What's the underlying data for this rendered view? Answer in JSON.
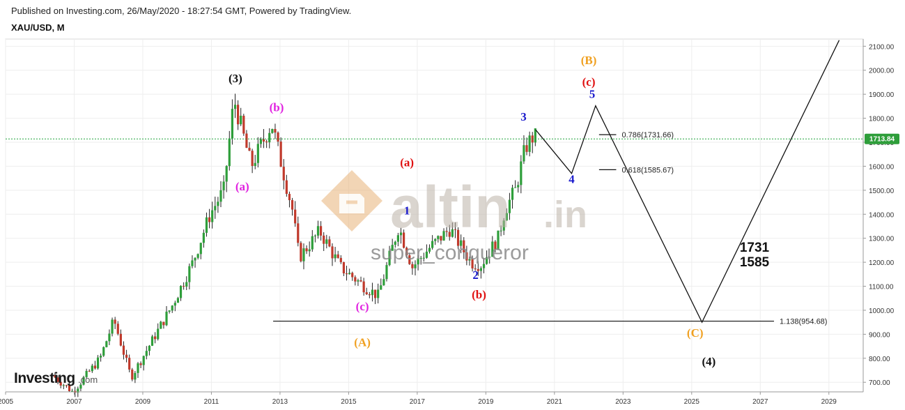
{
  "header": {
    "published": "Published on Investing.com, 26/May/2020 - 18:27:54 GMT, Powered by TradingView.",
    "symbol": "XAU/USD, M"
  },
  "branding": {
    "logo_text": "Investing",
    "logo_suffix": ".com",
    "watermark_main": "altin",
    "watermark_suffix": ".in",
    "author": "super_conqueror"
  },
  "colors": {
    "up": "#2e9e3a",
    "down": "#c0392b",
    "price_line": "#1ea33a",
    "price_badge": "#2e9e3a",
    "black_label": "#111111",
    "magenta_label": "#e020e0",
    "red_label": "#e01010",
    "blue_label": "#1a1acc",
    "orange_label": "#f0a020"
  },
  "chart_data": {
    "type": "candlestick",
    "x_axis": {
      "ticks": [
        "2005",
        "2007",
        "2009",
        "2011",
        "2013",
        "2015",
        "2017",
        "2019",
        "2021",
        "2023",
        "2025",
        "2027",
        "2029"
      ],
      "range": [
        2005.0,
        2030.0
      ]
    },
    "y_axis": {
      "ticks": [
        "2100.00",
        "2000.00",
        "1900.00",
        "1800.00",
        "1700.00",
        "1600.00",
        "1500.00",
        "1400.00",
        "1300.00",
        "1200.00",
        "1100.00",
        "1000.00",
        "900.00",
        "800.00",
        "700.00"
      ],
      "range": [
        660,
        2130
      ]
    },
    "current_price": {
      "value": 1713.84,
      "label": "1713.84"
    },
    "price_series": [
      [
        2006.4,
        730
      ],
      [
        2007.0,
        660
      ],
      [
        2007.8,
        800
      ],
      [
        2008.2,
        960
      ],
      [
        2008.7,
        720
      ],
      [
        2009.5,
        920
      ],
      [
        2009.9,
        1020
      ],
      [
        2010.5,
        1200
      ],
      [
        2011.0,
        1400
      ],
      [
        2011.4,
        1500
      ],
      [
        2011.7,
        1880
      ],
      [
        2012.2,
        1600
      ],
      [
        2012.8,
        1780
      ],
      [
        2013.4,
        1420
      ],
      [
        2013.6,
        1220
      ],
      [
        2014.2,
        1330
      ],
      [
        2014.8,
        1180
      ],
      [
        2015.5,
        1100
      ],
      [
        2015.9,
        1060
      ],
      [
        2016.5,
        1350
      ],
      [
        2016.9,
        1180
      ],
      [
        2017.4,
        1260
      ],
      [
        2018.0,
        1340
      ],
      [
        2018.6,
        1200
      ],
      [
        2018.9,
        1190
      ],
      [
        2019.4,
        1300
      ],
      [
        2019.6,
        1420
      ],
      [
        2019.9,
        1500
      ],
      [
        2020.2,
        1680
      ],
      [
        2020.4,
        1720
      ]
    ],
    "projection": [
      [
        2020.45,
        1752
      ],
      [
        2021.5,
        1570
      ],
      [
        2022.2,
        1852
      ],
      [
        2025.3,
        950
      ],
      [
        2029.3,
        2125
      ]
    ],
    "fib_levels": [
      {
        "label": "0.786(1731.66)",
        "value": 1731.66,
        "x_from": 2022.3,
        "x_to": 2022.8
      },
      {
        "label": "0.618(1585.67)",
        "value": 1585.67,
        "x_from": 2022.3,
        "x_to": 2022.8
      },
      {
        "label": "1.138(954.68)",
        "value": 954.68,
        "x_from": 2012.8,
        "x_to": 2027.4
      }
    ],
    "wave_labels": [
      {
        "text": "(3)",
        "x": 2011.7,
        "y": 1950,
        "color": "black"
      },
      {
        "text": "(b)",
        "x": 2012.9,
        "y": 1830,
        "color": "magenta"
      },
      {
        "text": "(a)",
        "x": 2011.9,
        "y": 1500,
        "color": "magenta"
      },
      {
        "text": "(c)",
        "x": 2015.4,
        "y": 1000,
        "color": "magenta"
      },
      {
        "text": "(a)",
        "x": 2016.7,
        "y": 1600,
        "color": "red"
      },
      {
        "text": "(b)",
        "x": 2018.8,
        "y": 1050,
        "color": "red"
      },
      {
        "text": "(c)",
        "x": 2022.0,
        "y": 1935,
        "color": "red"
      },
      {
        "text": "1",
        "x": 2016.7,
        "y": 1400,
        "color": "blue"
      },
      {
        "text": "2",
        "x": 2018.7,
        "y": 1130,
        "color": "blue"
      },
      {
        "text": "3",
        "x": 2020.1,
        "y": 1790,
        "color": "blue"
      },
      {
        "text": "4",
        "x": 2021.5,
        "y": 1530,
        "color": "blue"
      },
      {
        "text": "5",
        "x": 2022.1,
        "y": 1885,
        "color": "blue"
      },
      {
        "text": "(A)",
        "x": 2015.4,
        "y": 850,
        "color": "orange"
      },
      {
        "text": "(B)",
        "x": 2022.0,
        "y": 2025,
        "color": "orange"
      },
      {
        "text": "(C)",
        "x": 2025.1,
        "y": 890,
        "color": "orange"
      },
      {
        "text": "(4)",
        "x": 2025.5,
        "y": 770,
        "color": "black"
      }
    ],
    "annotations": [
      "1731",
      "1585"
    ]
  }
}
